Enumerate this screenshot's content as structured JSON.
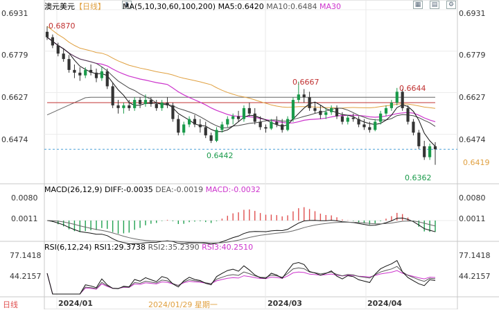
{
  "header": {
    "symbol": "澳元美元",
    "period": "【日线】",
    "ma_params": "MA(5,10,30,60,100,200)",
    "ma5": "MA5:0.6420",
    "ma10": "MA10:0.6484",
    "ma30": "MA30"
  },
  "main_axis": {
    "ticks": [
      "0.6931",
      "0.6779",
      "0.6627",
      "0.6474"
    ],
    "current_price": "0.6419",
    "hi_label": "0.6870",
    "low_label_1": "0.6442",
    "high_label_2": "0.6667",
    "high_label_3": "0.6644",
    "low_label_4": "0.6362"
  },
  "macd": {
    "title": "MACD(26,12,9)",
    "diff": "DIFF:-0.0035",
    "dea": "DEA:-0.0019",
    "macd": "MACD:-0.0032",
    "ticks": [
      "0.0080",
      "0.0011"
    ]
  },
  "rsi": {
    "title": "RSI(6,12,24)",
    "rsi1": "RSI1:29.3738",
    "rsi2": "RSI2:35.2390",
    "rsi3": "RSI3:40.2510",
    "ticks": [
      "77.1418",
      "44.2157"
    ]
  },
  "footer": {
    "mode": "日线",
    "date1": "2024/01",
    "cursor_date": "2024/01/29 星期一",
    "date2": "2024/03",
    "date3": "2024/04"
  },
  "colors": {
    "up": "#1a9a4a",
    "down": "#333333",
    "ma5": "#111111",
    "ma10": "#4a4a4a",
    "ma30": "#cc33cc",
    "ma60": "#e0a040",
    "ma100": "#c03030",
    "ma200": "#666666",
    "price_line": "#4aa0d8",
    "macd_pos": "#e05050",
    "macd_neg": "#20a050"
  },
  "chart_data": {
    "type": "candlestick",
    "price_range": [
      0.63,
      0.6931
    ],
    "candles": [
      [
        0.685,
        0.687,
        0.682,
        0.683
      ],
      [
        0.683,
        0.684,
        0.679,
        0.68
      ],
      [
        0.68,
        0.681,
        0.676,
        0.677
      ],
      [
        0.677,
        0.679,
        0.674,
        0.675
      ],
      [
        0.675,
        0.6765,
        0.67,
        0.671
      ],
      [
        0.671,
        0.673,
        0.668,
        0.67
      ],
      [
        0.67,
        0.672,
        0.667,
        0.669
      ],
      [
        0.669,
        0.672,
        0.668,
        0.671
      ],
      [
        0.671,
        0.673,
        0.669,
        0.67
      ],
      [
        0.67,
        0.6715,
        0.6665,
        0.668
      ],
      [
        0.668,
        0.672,
        0.667,
        0.6705
      ],
      [
        0.6705,
        0.6715,
        0.664,
        0.665
      ],
      [
        0.665,
        0.6665,
        0.657,
        0.658
      ],
      [
        0.658,
        0.66,
        0.655,
        0.657
      ],
      [
        0.657,
        0.659,
        0.655,
        0.658
      ],
      [
        0.658,
        0.66,
        0.656,
        0.657
      ],
      [
        0.657,
        0.661,
        0.656,
        0.66
      ],
      [
        0.66,
        0.661,
        0.657,
        0.6585
      ],
      [
        0.6585,
        0.662,
        0.6575,
        0.66
      ],
      [
        0.66,
        0.661,
        0.6575,
        0.6585
      ],
      [
        0.6585,
        0.66,
        0.656,
        0.657
      ],
      [
        0.657,
        0.66,
        0.656,
        0.659
      ],
      [
        0.659,
        0.661,
        0.657,
        0.658
      ],
      [
        0.658,
        0.659,
        0.652,
        0.653
      ],
      [
        0.653,
        0.6545,
        0.647,
        0.648
      ],
      [
        0.648,
        0.652,
        0.647,
        0.651
      ],
      [
        0.651,
        0.654,
        0.65,
        0.653
      ],
      [
        0.653,
        0.6545,
        0.65,
        0.651
      ],
      [
        0.651,
        0.653,
        0.648,
        0.65
      ],
      [
        0.65,
        0.652,
        0.646,
        0.647
      ],
      [
        0.647,
        0.648,
        0.6442,
        0.645
      ],
      [
        0.645,
        0.65,
        0.6445,
        0.649
      ],
      [
        0.649,
        0.652,
        0.648,
        0.651
      ],
      [
        0.651,
        0.654,
        0.65,
        0.653
      ],
      [
        0.653,
        0.655,
        0.651,
        0.654
      ],
      [
        0.654,
        0.656,
        0.652,
        0.653
      ],
      [
        0.653,
        0.658,
        0.652,
        0.657
      ],
      [
        0.657,
        0.659,
        0.654,
        0.655
      ],
      [
        0.655,
        0.657,
        0.651,
        0.652
      ],
      [
        0.652,
        0.654,
        0.649,
        0.65
      ],
      [
        0.65,
        0.651,
        0.648,
        0.6495
      ],
      [
        0.6495,
        0.653,
        0.649,
        0.652
      ],
      [
        0.652,
        0.654,
        0.65,
        0.651
      ],
      [
        0.651,
        0.653,
        0.648,
        0.649
      ],
      [
        0.649,
        0.654,
        0.6485,
        0.653
      ],
      [
        0.653,
        0.661,
        0.652,
        0.66
      ],
      [
        0.66,
        0.6667,
        0.659,
        0.662
      ],
      [
        0.662,
        0.664,
        0.659,
        0.661
      ],
      [
        0.661,
        0.663,
        0.656,
        0.657
      ],
      [
        0.657,
        0.659,
        0.655,
        0.656
      ],
      [
        0.656,
        0.658,
        0.653,
        0.6545
      ],
      [
        0.6545,
        0.657,
        0.653,
        0.6555
      ],
      [
        0.6555,
        0.658,
        0.6545,
        0.657
      ],
      [
        0.657,
        0.658,
        0.653,
        0.654
      ],
      [
        0.654,
        0.6555,
        0.651,
        0.652
      ],
      [
        0.652,
        0.6545,
        0.651,
        0.6535
      ],
      [
        0.6535,
        0.655,
        0.652,
        0.653
      ],
      [
        0.653,
        0.654,
        0.65,
        0.651
      ],
      [
        0.651,
        0.653,
        0.649,
        0.65
      ],
      [
        0.65,
        0.652,
        0.648,
        0.649
      ],
      [
        0.649,
        0.653,
        0.6485,
        0.652
      ],
      [
        0.652,
        0.656,
        0.651,
        0.655
      ],
      [
        0.655,
        0.658,
        0.654,
        0.657
      ],
      [
        0.657,
        0.66,
        0.656,
        0.659
      ],
      [
        0.659,
        0.6644,
        0.658,
        0.663
      ],
      [
        0.663,
        0.664,
        0.656,
        0.657
      ],
      [
        0.657,
        0.658,
        0.651,
        0.652
      ],
      [
        0.652,
        0.653,
        0.647,
        0.648
      ],
      [
        0.648,
        0.649,
        0.642,
        0.643
      ],
      [
        0.643,
        0.645,
        0.638,
        0.639
      ],
      [
        0.639,
        0.644,
        0.638,
        0.643
      ],
      [
        0.643,
        0.6445,
        0.6362,
        0.6419
      ]
    ]
  }
}
